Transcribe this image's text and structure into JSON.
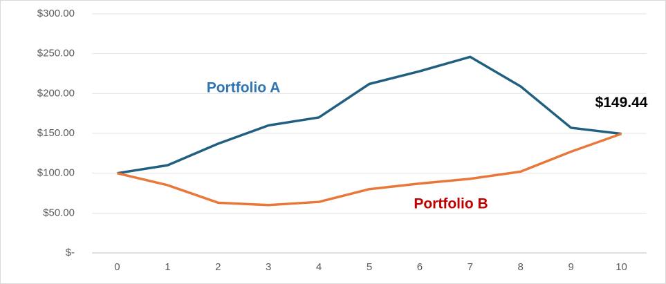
{
  "chart_data": {
    "type": "line",
    "x": [
      0,
      1,
      2,
      3,
      4,
      5,
      6,
      7,
      8,
      9,
      10
    ],
    "xlim": [
      -0.5,
      10.5
    ],
    "xticks": [
      0,
      1,
      2,
      3,
      4,
      5,
      6,
      7,
      8,
      9,
      10
    ],
    "ylim": [
      0,
      300
    ],
    "yticks": [
      {
        "value": 0,
        "label": "$-"
      },
      {
        "value": 50,
        "label": "$50.00"
      },
      {
        "value": 100,
        "label": "$100.00"
      },
      {
        "value": 150,
        "label": "$150.00"
      },
      {
        "value": 200,
        "label": "$200.00"
      },
      {
        "value": 250,
        "label": "$250.00"
      },
      {
        "value": 300,
        "label": "$300.00"
      }
    ],
    "grid": true,
    "series": [
      {
        "name": "Portfolio A",
        "color": "#215f80",
        "label_color": "#2e75b6",
        "values": [
          100,
          110,
          137,
          160,
          170,
          212,
          228,
          246,
          209,
          157,
          149.44
        ],
        "value_labels": [
          null,
          null,
          null,
          null,
          null,
          null,
          null,
          null,
          null,
          null,
          "$149.44"
        ]
      },
      {
        "name": "Portfolio B",
        "color": "#e8773a",
        "label_color": "#c00000",
        "values": [
          100,
          85,
          63,
          60,
          64,
          80,
          87,
          93,
          102,
          127,
          149.44
        ]
      }
    ]
  }
}
